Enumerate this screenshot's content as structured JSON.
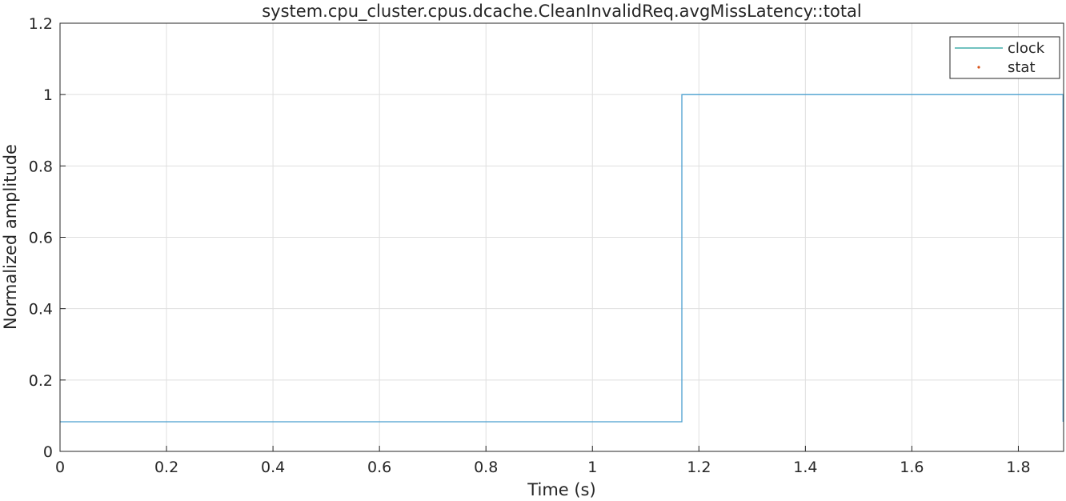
{
  "chart_data": {
    "type": "line",
    "title": "system.cpu_cluster.cpus.dcache.CleanInvalidReq.avgMissLatency::total",
    "xlabel": "Time (s)",
    "ylabel": "Normalized amplitude",
    "xlim": [
      0,
      1.885
    ],
    "ylim": [
      0,
      1.2
    ],
    "xticks": [
      0,
      0.2,
      0.4,
      0.6,
      0.8,
      1,
      1.2,
      1.4,
      1.6,
      1.8
    ],
    "xtick_labels": [
      "0",
      "0.2",
      "0.4",
      "0.6",
      "0.8",
      "1",
      "1.2",
      "1.4",
      "1.6",
      "1.8"
    ],
    "yticks": [
      0,
      0.2,
      0.4,
      0.6,
      0.8,
      1,
      1.2
    ],
    "ytick_labels": [
      "0",
      "0.2",
      "0.4",
      "0.6",
      "0.8",
      "1",
      "1.2"
    ],
    "grid": true,
    "legend_position": "top-right",
    "series": [
      {
        "name": "clock",
        "style": "line",
        "color": "#1f9e9a",
        "x": [
          0,
          1.168,
          1.168,
          1.884,
          1.884
        ],
        "y": [
          0.083,
          0.083,
          1.0,
          1.0,
          0.083
        ]
      },
      {
        "name": "stat",
        "style": "dot",
        "color": "#d95319",
        "x": [],
        "y": []
      }
    ],
    "plotted_line_color": "#4a9fcf"
  }
}
